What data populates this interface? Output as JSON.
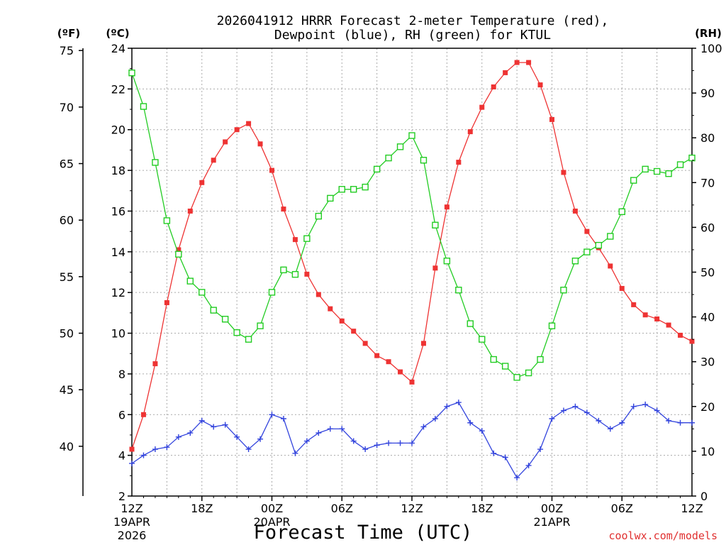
{
  "chart_data": {
    "type": "line",
    "title_line1": "2026041912 HRRR Forecast 2-meter Temperature (red),",
    "title_line2": "Dewpoint (blue), RH (green) for KTUL",
    "xlabel": "Forecast Time (UTC)",
    "watermark": "coolwx.com/models",
    "unit_left_f": "(ºF)",
    "unit_left_c": "(ºC)",
    "unit_right": "(RH)",
    "x_range_hours": [
      0,
      48
    ],
    "ylim_c": [
      2,
      24
    ],
    "ylim_rh": [
      0,
      100
    ],
    "x_ticks": [
      {
        "hour": 0,
        "label": "12Z",
        "sub1": "19APR",
        "sub2": "2026"
      },
      {
        "hour": 6,
        "label": "18Z",
        "sub1": "",
        "sub2": ""
      },
      {
        "hour": 12,
        "label": "00Z",
        "sub1": "20APR",
        "sub2": ""
      },
      {
        "hour": 18,
        "label": "06Z",
        "sub1": "",
        "sub2": ""
      },
      {
        "hour": 24,
        "label": "12Z",
        "sub1": "",
        "sub2": ""
      },
      {
        "hour": 30,
        "label": "18Z",
        "sub1": "",
        "sub2": ""
      },
      {
        "hour": 36,
        "label": "00Z",
        "sub1": "21APR",
        "sub2": ""
      },
      {
        "hour": 42,
        "label": "06Z",
        "sub1": "",
        "sub2": ""
      },
      {
        "hour": 48,
        "label": "12Z",
        "sub1": "",
        "sub2": ""
      }
    ],
    "c_ticks": [
      "2",
      "4",
      "6",
      "8",
      "10",
      "12",
      "14",
      "16",
      "18",
      "20",
      "22",
      "24"
    ],
    "f_ticks": [
      "40",
      "45",
      "50",
      "55",
      "60",
      "65",
      "70",
      "75"
    ],
    "rh_ticks": [
      "0",
      "10",
      "20",
      "30",
      "40",
      "50",
      "60",
      "70",
      "80",
      "90",
      "100"
    ],
    "series": [
      {
        "key": "temperature",
        "color": "#ee3333",
        "marker": "filled-square",
        "units": "°C",
        "values": [
          4.3,
          6.0,
          8.5,
          11.5,
          14.1,
          16.0,
          17.4,
          18.5,
          19.4,
          20.0,
          20.3,
          19.3,
          18.0,
          16.1,
          14.6,
          12.9,
          11.9,
          11.2,
          10.6,
          10.1,
          9.5,
          8.9,
          8.6,
          8.1,
          7.6,
          9.5,
          13.2,
          16.2,
          18.4,
          19.9,
          21.1,
          22.1,
          22.8,
          23.3,
          23.3,
          22.2,
          20.5,
          17.9,
          16.0,
          15.0,
          14.2,
          13.3,
          12.2,
          11.4,
          10.9,
          10.7,
          10.4,
          9.9,
          9.6
        ]
      },
      {
        "key": "dewpoint",
        "color": "#3344dd",
        "marker": "plus",
        "units": "°C",
        "values": [
          3.6,
          4.0,
          4.3,
          4.4,
          4.9,
          5.1,
          5.7,
          5.4,
          5.5,
          4.9,
          4.3,
          4.8,
          6.0,
          5.8,
          4.1,
          4.7,
          5.1,
          5.3,
          5.3,
          4.7,
          4.3,
          4.5,
          4.6,
          4.6,
          4.6,
          5.4,
          5.8,
          6.4,
          6.6,
          5.6,
          5.2,
          4.1,
          3.9,
          2.9,
          3.5,
          4.3,
          5.8,
          6.2,
          6.4,
          6.1,
          5.7,
          5.3,
          5.6,
          6.4,
          6.5,
          6.2,
          5.7,
          5.6,
          5.6
        ]
      },
      {
        "key": "relative_humidity",
        "color": "#22cc22",
        "marker": "open-square",
        "units": "%",
        "values": [
          94.5,
          87.0,
          74.5,
          61.5,
          54.0,
          48.0,
          45.5,
          41.5,
          39.5,
          36.5,
          35.0,
          38.0,
          45.5,
          50.5,
          49.5,
          57.5,
          62.5,
          66.5,
          68.5,
          68.5,
          69.0,
          73.0,
          75.5,
          78.0,
          80.5,
          75.0,
          60.5,
          52.5,
          46.0,
          38.5,
          35.0,
          30.5,
          29.0,
          26.5,
          27.5,
          30.5,
          38.0,
          46.0,
          52.5,
          54.5,
          56.0,
          58.0,
          63.5,
          70.5,
          73.0,
          72.5,
          72.0,
          74.0,
          75.5
        ]
      }
    ]
  }
}
